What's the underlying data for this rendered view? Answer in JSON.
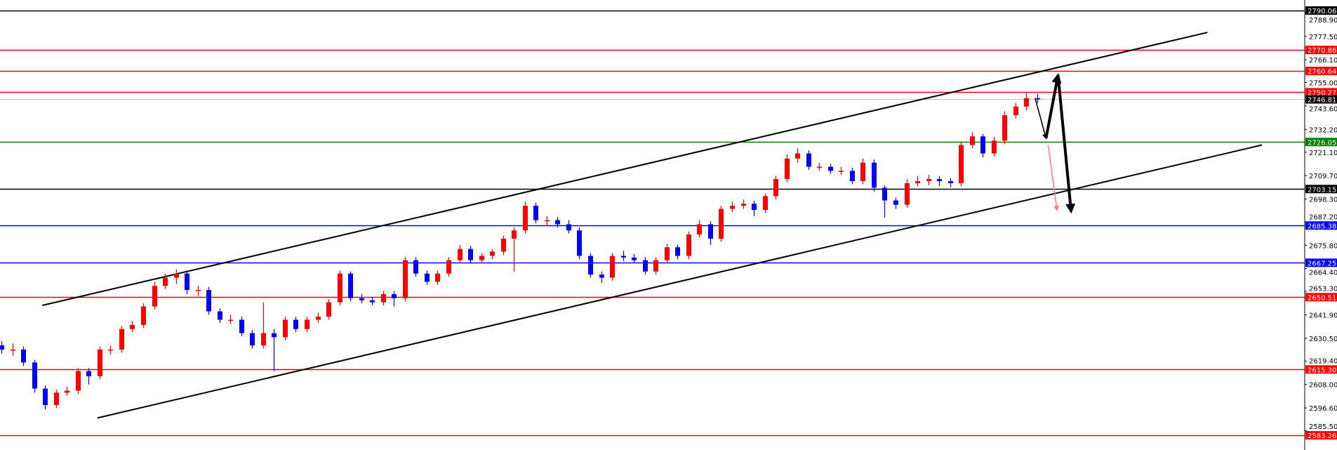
{
  "chart_data": {
    "type": "candlestick",
    "title": "",
    "xlabel": "",
    "ylabel": "",
    "ylim": [
      2576.1,
      2795.19
    ],
    "grid": false,
    "colors": {
      "up": "#ff0000",
      "down": "#0000ff",
      "trendline": "#000000",
      "current_price_line": "#c0c0c0"
    },
    "y_ticks": [
      "2788.90",
      "2777.50",
      "2766.10",
      "2755.00",
      "2743.60",
      "2732.20",
      "2721.10",
      "2709.70",
      "2698.30",
      "2687.20",
      "2675.80",
      "2664.40",
      "2653.30",
      "2641.90",
      "2630.50",
      "2619.40",
      "2608.00",
      "2596.60",
      "2585.50"
    ],
    "levels": [
      {
        "price": 2790.06,
        "label": "2790.06",
        "color": "#000000"
      },
      {
        "price": 2770.86,
        "label": "2770.86",
        "color": "#ff0000"
      },
      {
        "price": 2760.64,
        "label": "2760.64",
        "color": "#ff0000"
      },
      {
        "price": 2750.27,
        "label": "2750.27",
        "color": "#ff0000"
      },
      {
        "price": 2726.05,
        "label": "2726.05",
        "color": "#008000"
      },
      {
        "price": 2703.15,
        "label": "2703.15",
        "color": "#000000"
      },
      {
        "price": 2685.38,
        "label": "2685.38",
        "color": "#0000ff"
      },
      {
        "price": 2667.25,
        "label": "2667.25",
        "color": "#0000ff"
      },
      {
        "price": 2650.51,
        "label": "2650.51",
        "color": "#ff0000"
      },
      {
        "price": 2615.3,
        "label": "2615.30",
        "color": "#ff0000"
      },
      {
        "price": 2583.26,
        "label": "2583.26",
        "color": "#ff0000"
      }
    ],
    "current_price": {
      "price": 2746.81,
      "label": "2746.81",
      "color": "#000000"
    },
    "trendlines": [
      {
        "from": [
          3.75,
          2646.5
        ],
        "to": [
          110.6,
          2779.4
        ]
      },
      {
        "from": [
          8.8,
          2591.7
        ],
        "to": [
          115.6,
          2724.6
        ]
      }
    ],
    "projection_arrows": [
      {
        "from": [
          94.8,
          2747.4
        ],
        "to": [
          95.8,
          2727.9
        ],
        "color": "#000000",
        "weight": "thin"
      },
      {
        "from": [
          95.8,
          2727.9
        ],
        "to": [
          96.9,
          2758.6
        ],
        "color": "#000000",
        "weight": "thick"
      },
      {
        "from": [
          96.9,
          2758.6
        ],
        "to": [
          98.1,
          2692.2
        ],
        "color": "#000000",
        "weight": "thick"
      },
      {
        "from": [
          96.0,
          2724.6
        ],
        "to": [
          96.8,
          2693.0
        ],
        "color": "#ff8080",
        "weight": "thin"
      }
    ],
    "candles_ohlc": [
      [
        2627,
        2629,
        2623,
        2625
      ],
      [
        2625,
        2628,
        2622,
        2625
      ],
      [
        2625,
        2626.5,
        2617,
        2618.7
      ],
      [
        2618.7,
        2620,
        2604,
        2606
      ],
      [
        2606,
        2607.5,
        2595.8,
        2598
      ],
      [
        2598,
        2605.5,
        2596.5,
        2604
      ],
      [
        2604,
        2607,
        2602.5,
        2605
      ],
      [
        2605,
        2616,
        2603.5,
        2614.5
      ],
      [
        2614.5,
        2616,
        2608,
        2612
      ],
      [
        2612,
        2626.5,
        2610.5,
        2625
      ],
      [
        2625,
        2627,
        2622.5,
        2625
      ],
      [
        2625,
        2636.5,
        2623.5,
        2635
      ],
      [
        2635,
        2639,
        2633.5,
        2637
      ],
      [
        2637,
        2647.5,
        2635.5,
        2646
      ],
      [
        2646,
        2658,
        2644.5,
        2656
      ],
      [
        2656,
        2662,
        2654.5,
        2660
      ],
      [
        2660,
        2664,
        2657,
        2662
      ],
      [
        2662,
        2663.5,
        2652,
        2654
      ],
      [
        2654,
        2656,
        2651,
        2654
      ],
      [
        2654,
        2655.5,
        2642,
        2643.6
      ],
      [
        2643.6,
        2645,
        2638,
        2639.5
      ],
      [
        2639.5,
        2642,
        2637.5,
        2639.5
      ],
      [
        2639.5,
        2641,
        2631.5,
        2633
      ],
      [
        2633,
        2634.5,
        2625.5,
        2627
      ],
      [
        2627,
        2648,
        2625.5,
        2633
      ],
      [
        2633,
        2635,
        2614.5,
        2631
      ],
      [
        2631,
        2641,
        2629.5,
        2639.5
      ],
      [
        2639.5,
        2641,
        2633.5,
        2635
      ],
      [
        2635,
        2641,
        2633.5,
        2639.5
      ],
      [
        2639.5,
        2643,
        2638,
        2641
      ],
      [
        2641,
        2649.5,
        2639.5,
        2648
      ],
      [
        2648,
        2663.5,
        2646.5,
        2662
      ],
      [
        2662,
        2663,
        2648.5,
        2650
      ],
      [
        2650,
        2652,
        2647.5,
        2649
      ],
      [
        2649,
        2650.5,
        2646.5,
        2648
      ],
      [
        2648,
        2653.5,
        2646.5,
        2652
      ],
      [
        2652,
        2653.5,
        2646,
        2650
      ],
      [
        2650,
        2670,
        2648.5,
        2668.5
      ],
      [
        2668.5,
        2670,
        2660.5,
        2662
      ],
      [
        2662,
        2663.5,
        2656.5,
        2658
      ],
      [
        2658,
        2663.5,
        2656.5,
        2662
      ],
      [
        2662,
        2670,
        2660.5,
        2668.5
      ],
      [
        2668.5,
        2676,
        2667,
        2674
      ],
      [
        2674,
        2675.5,
        2667,
        2668.5
      ],
      [
        2668.5,
        2672,
        2667,
        2670.6
      ],
      [
        2670.6,
        2674,
        2669,
        2672.7
      ],
      [
        2672.7,
        2680.5,
        2671,
        2679
      ],
      [
        2679,
        2684.5,
        2663,
        2683
      ],
      [
        2683,
        2697,
        2681.5,
        2695
      ],
      [
        2695,
        2696.5,
        2686.5,
        2688
      ],
      [
        2688,
        2690,
        2685,
        2688
      ],
      [
        2688,
        2689.5,
        2684.5,
        2686
      ],
      [
        2686,
        2688,
        2681.5,
        2683
      ],
      [
        2683,
        2684.5,
        2669,
        2670.6
      ],
      [
        2670.6,
        2672,
        2660,
        2661.5
      ],
      [
        2661.5,
        2663,
        2657.5,
        2660
      ],
      [
        2660,
        2672,
        2658.5,
        2670.6
      ],
      [
        2670.6,
        2673,
        2668,
        2669.8
      ],
      [
        2669.8,
        2671.5,
        2667,
        2668.5
      ],
      [
        2668.5,
        2670,
        2661.5,
        2663
      ],
      [
        2663,
        2670,
        2661.5,
        2668.5
      ],
      [
        2668.5,
        2676.5,
        2667,
        2674.8
      ],
      [
        2674.8,
        2676,
        2669,
        2670.6
      ],
      [
        2670.6,
        2682.5,
        2669,
        2681
      ],
      [
        2681,
        2688,
        2679.5,
        2686
      ],
      [
        2686,
        2687.5,
        2676,
        2679
      ],
      [
        2679,
        2695,
        2677.5,
        2693.5
      ],
      [
        2693.5,
        2697,
        2692,
        2695
      ],
      [
        2695,
        2698,
        2693.5,
        2696
      ],
      [
        2696,
        2697.5,
        2690,
        2693
      ],
      [
        2693,
        2701,
        2691.5,
        2699.7
      ],
      [
        2699.7,
        2709.5,
        2698,
        2708
      ],
      [
        2708,
        2720,
        2706.5,
        2718
      ],
      [
        2718,
        2723,
        2716,
        2720.5
      ],
      [
        2720.5,
        2722,
        2712.5,
        2714
      ],
      [
        2714,
        2716,
        2712,
        2714
      ],
      [
        2714,
        2715.5,
        2710.5,
        2712
      ],
      [
        2712,
        2714,
        2710,
        2712
      ],
      [
        2712,
        2713.5,
        2705.5,
        2707
      ],
      [
        2707,
        2718,
        2705.5,
        2716
      ],
      [
        2716,
        2717.5,
        2702,
        2703.8
      ],
      [
        2703.8,
        2705,
        2689.3,
        2697.6
      ],
      [
        2697.6,
        2699,
        2693.5,
        2695.5
      ],
      [
        2695.5,
        2708,
        2694,
        2706
      ],
      [
        2706,
        2709.5,
        2704.5,
        2707
      ],
      [
        2707,
        2710,
        2705,
        2708
      ],
      [
        2708,
        2709.5,
        2704.5,
        2707
      ],
      [
        2707,
        2708.5,
        2704,
        2706
      ],
      [
        2706,
        2726,
        2704.5,
        2724.6
      ],
      [
        2724.6,
        2731,
        2723,
        2728.8
      ],
      [
        2728.8,
        2730,
        2718.5,
        2720.5
      ],
      [
        2720.5,
        2728.5,
        2719,
        2726.7
      ],
      [
        2726.7,
        2741,
        2725,
        2739.1
      ],
      [
        2739.1,
        2745,
        2737.5,
        2743.3
      ],
      [
        2743.3,
        2750,
        2741.5,
        2747.4
      ],
      [
        2747.4,
        2749.5,
        2745,
        2746.81
      ]
    ]
  }
}
